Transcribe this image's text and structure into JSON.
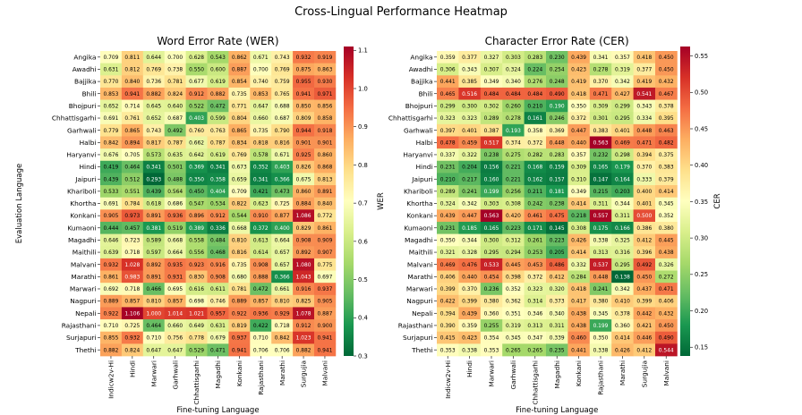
{
  "figure": {
    "title": "Cross-Lingual Performance Heatmap"
  },
  "chart_data": [
    {
      "type": "heatmap",
      "title": "Word Error Rate (WER)",
      "xlabel": "Fine-tuning Language",
      "ylabel": "Evaluation Language",
      "colorbar_label": "WER",
      "colormap": "RdYlGn_r",
      "vmin": 0.3,
      "vmax": 1.11,
      "colorbar_ticks": [
        "0.3",
        "0.4",
        "0.5",
        "0.6",
        "0.7",
        "0.8",
        "0.9",
        "1.0",
        "1.1"
      ],
      "columns": [
        "Indicw2v-Hi",
        "Hindi",
        "Marwari",
        "Garhwali",
        "Chhattisgarhi",
        "Magadhi",
        "Konkani",
        "Rajasthani",
        "Marathi",
        "Surgujia",
        "Malvani"
      ],
      "rows": [
        "Angika",
        "Awadhi",
        "Bajjika",
        "Bhili",
        "Bhojpuri",
        "Chhattisgarhi",
        "Garhwali",
        "Halbi",
        "Haryanvi",
        "Hindi",
        "Jaipuri",
        "Khariboli",
        "Khortha",
        "Konkani",
        "Kumaoni",
        "Magadhi",
        "Maithili",
        "Malvani",
        "Marathi",
        "Marwari",
        "Nagpuri",
        "Nepali",
        "Rajasthani",
        "Surjapuri",
        "Thethi"
      ],
      "values": [
        [
          "0.709",
          "0.811",
          "0.644",
          "0.700",
          "0.628",
          "0.543",
          "0.862",
          "0.671",
          "0.743",
          "0.932",
          "0.919"
        ],
        [
          "0.631",
          "0.812",
          "0.769",
          "0.738",
          "0.550",
          "0.600",
          "0.887",
          "0.700",
          "0.769",
          "0.875",
          "0.863"
        ],
        [
          "0.770",
          "0.840",
          "0.736",
          "0.781",
          "0.677",
          "0.619",
          "0.854",
          "0.740",
          "0.759",
          "0.955",
          "0.930"
        ],
        [
          "0.853",
          "0.941",
          "0.882",
          "0.824",
          "0.912",
          "0.882",
          "0.735",
          "0.853",
          "0.765",
          "0.941",
          "0.971"
        ],
        [
          "0.652",
          "0.714",
          "0.645",
          "0.640",
          "0.522",
          "0.472",
          "0.771",
          "0.647",
          "0.688",
          "0.850",
          "0.856"
        ],
        [
          "0.691",
          "0.761",
          "0.652",
          "0.687",
          "0.403",
          "0.599",
          "0.804",
          "0.660",
          "0.687",
          "0.809",
          "0.858"
        ],
        [
          "0.779",
          "0.865",
          "0.743",
          "0.492",
          "0.760",
          "0.763",
          "0.865",
          "0.735",
          "0.790",
          "0.944",
          "0.918"
        ],
        [
          "0.842",
          "0.894",
          "0.817",
          "0.787",
          "0.662",
          "0.787",
          "0.834",
          "0.818",
          "0.816",
          "0.901",
          "0.901"
        ],
        [
          "0.676",
          "0.705",
          "0.573",
          "0.635",
          "0.642",
          "0.619",
          "0.769",
          "0.578",
          "0.671",
          "0.925",
          "0.860"
        ],
        [
          "0.419",
          "0.464",
          "0.341",
          "0.501",
          "0.369",
          "0.341",
          "0.673",
          "0.352",
          "0.403",
          "0.826",
          "0.868"
        ],
        [
          "0.439",
          "0.512",
          "0.293",
          "0.488",
          "0.350",
          "0.358",
          "0.659",
          "0.341",
          "0.366",
          "0.675",
          "0.813"
        ],
        [
          "0.533",
          "0.551",
          "0.439",
          "0.564",
          "0.450",
          "0.404",
          "0.709",
          "0.421",
          "0.473",
          "0.860",
          "0.891"
        ],
        [
          "0.691",
          "0.784",
          "0.618",
          "0.686",
          "0.547",
          "0.534",
          "0.822",
          "0.623",
          "0.725",
          "0.884",
          "0.840"
        ],
        [
          "0.905",
          "0.973",
          "0.891",
          "0.936",
          "0.896",
          "0.912",
          "0.544",
          "0.910",
          "0.877",
          "1.086",
          "0.772"
        ],
        [
          "0.444",
          "0.457",
          "0.381",
          "0.519",
          "0.389",
          "0.336",
          "0.668",
          "0.372",
          "0.400",
          "0.829",
          "0.861"
        ],
        [
          "0.646",
          "0.723",
          "0.589",
          "0.668",
          "0.558",
          "0.484",
          "0.810",
          "0.613",
          "0.664",
          "0.908",
          "0.909"
        ],
        [
          "0.639",
          "0.718",
          "0.597",
          "0.664",
          "0.556",
          "0.468",
          "0.816",
          "0.614",
          "0.657",
          "0.892",
          "0.907"
        ],
        [
          "0.932",
          "1.028",
          "0.892",
          "0.935",
          "0.923",
          "0.916",
          "0.735",
          "0.908",
          "0.657",
          "1.080",
          "0.775"
        ],
        [
          "0.861",
          "0.983",
          "0.891",
          "0.931",
          "0.830",
          "0.908",
          "0.680",
          "0.888",
          "0.366",
          "1.043",
          "0.697"
        ],
        [
          "0.692",
          "0.718",
          "0.466",
          "0.695",
          "0.616",
          "0.611",
          "0.781",
          "0.472",
          "0.661",
          "0.916",
          "0.937"
        ],
        [
          "0.889",
          "0.857",
          "0.810",
          "0.857",
          "0.698",
          "0.746",
          "0.889",
          "0.857",
          "0.810",
          "0.825",
          "0.905"
        ],
        [
          "0.922",
          "1.106",
          "1.000",
          "1.014",
          "1.021",
          "0.957",
          "0.922",
          "0.936",
          "0.929",
          "1.078",
          "0.887"
        ],
        [
          "0.710",
          "0.725",
          "0.464",
          "0.660",
          "0.649",
          "0.631",
          "0.819",
          "0.422",
          "0.718",
          "0.912",
          "0.900"
        ],
        [
          "0.855",
          "0.932",
          "0.710",
          "0.756",
          "0.778",
          "0.679",
          "0.937",
          "0.710",
          "0.842",
          "1.023",
          "0.941"
        ],
        [
          "0.882",
          "0.824",
          "0.647",
          "0.647",
          "0.529",
          "0.471",
          "0.941",
          "0.706",
          "0.706",
          "0.882",
          "0.941"
        ]
      ]
    },
    {
      "type": "heatmap",
      "title": "Character Error Rate (CER)",
      "xlabel": "Fine-tuning Language",
      "ylabel": "",
      "colorbar_label": "CER",
      "colormap": "RdYlGn_r",
      "vmin": 0.138,
      "vmax": 0.563,
      "colorbar_ticks": [
        "0.15",
        "0.20",
        "0.25",
        "0.30",
        "0.35",
        "0.40",
        "0.45",
        "0.50",
        "0.55"
      ],
      "columns": [
        "Indicw2v-Hi",
        "Hindi",
        "Marwari",
        "Garhwali",
        "Chhattisgarhi",
        "Magadhi",
        "Konkani",
        "Rajasthani",
        "Marathi",
        "Surgujia",
        "Malvani"
      ],
      "rows": [
        "Angika",
        "Awadhi",
        "Bajjika",
        "Bhili",
        "Bhojpuri",
        "Chhattisgarhi",
        "Garhwali",
        "Halbi",
        "Haryanvi",
        "Hindi",
        "Jaipuri",
        "Khariboli",
        "Khortha",
        "Konkani",
        "Kumaoni",
        "Magadhi",
        "Maithili",
        "Malvani",
        "Marathi",
        "Marwari",
        "Nagpuri",
        "Nepali",
        "Rajasthani",
        "Surjapuri",
        "Thethi"
      ],
      "values": [
        [
          "0.359",
          "0.377",
          "0.327",
          "0.303",
          "0.283",
          "0.230",
          "0.439",
          "0.341",
          "0.357",
          "0.418",
          "0.450"
        ],
        [
          "0.306",
          "0.343",
          "0.307",
          "0.324",
          "0.224",
          "0.254",
          "0.423",
          "0.278",
          "0.319",
          "0.377",
          "0.450"
        ],
        [
          "0.441",
          "0.385",
          "0.349",
          "0.340",
          "0.276",
          "0.248",
          "0.419",
          "0.370",
          "0.342",
          "0.419",
          "0.432"
        ],
        [
          "0.465",
          "0.516",
          "0.484",
          "0.484",
          "0.484",
          "0.490",
          "0.418",
          "0.471",
          "0.427",
          "0.541",
          "0.467"
        ],
        [
          "0.299",
          "0.300",
          "0.302",
          "0.260",
          "0.210",
          "0.190",
          "0.350",
          "0.309",
          "0.299",
          "0.343",
          "0.378"
        ],
        [
          "0.323",
          "0.323",
          "0.289",
          "0.278",
          "0.161",
          "0.246",
          "0.372",
          "0.301",
          "0.295",
          "0.334",
          "0.395"
        ],
        [
          "0.397",
          "0.401",
          "0.387",
          "0.193",
          "0.358",
          "0.369",
          "0.447",
          "0.383",
          "0.401",
          "0.448",
          "0.463"
        ],
        [
          "0.478",
          "0.459",
          "0.517",
          "0.374",
          "0.372",
          "0.448",
          "0.440",
          "0.563",
          "0.469",
          "0.471",
          "0.482"
        ],
        [
          "0.337",
          "0.322",
          "0.238",
          "0.275",
          "0.282",
          "0.283",
          "0.357",
          "0.232",
          "0.298",
          "0.394",
          "0.375"
        ],
        [
          "0.231",
          "0.204",
          "0.156",
          "0.221",
          "0.168",
          "0.159",
          "0.309",
          "0.165",
          "0.179",
          "0.370",
          "0.383"
        ],
        [
          "0.210",
          "0.217",
          "0.160",
          "0.221",
          "0.162",
          "0.157",
          "0.310",
          "0.147",
          "0.164",
          "0.333",
          "0.379"
        ],
        [
          "0.289",
          "0.241",
          "0.199",
          "0.256",
          "0.211",
          "0.181",
          "0.349",
          "0.215",
          "0.203",
          "0.400",
          "0.414"
        ],
        [
          "0.324",
          "0.342",
          "0.303",
          "0.308",
          "0.242",
          "0.238",
          "0.414",
          "0.311",
          "0.344",
          "0.401",
          "0.345"
        ],
        [
          "0.439",
          "0.447",
          "0.563",
          "0.420",
          "0.461",
          "0.475",
          "0.218",
          "0.557",
          "0.311",
          "0.500",
          "0.352"
        ],
        [
          "0.231",
          "0.185",
          "0.165",
          "0.223",
          "0.171",
          "0.145",
          "0.308",
          "0.175",
          "0.166",
          "0.386",
          "0.380"
        ],
        [
          "0.350",
          "0.344",
          "0.300",
          "0.312",
          "0.261",
          "0.223",
          "0.426",
          "0.338",
          "0.325",
          "0.412",
          "0.445"
        ],
        [
          "0.321",
          "0.328",
          "0.295",
          "0.294",
          "0.253",
          "0.205",
          "0.414",
          "0.313",
          "0.316",
          "0.396",
          "0.438"
        ],
        [
          "0.469",
          "0.476",
          "0.533",
          "0.445",
          "0.453",
          "0.486",
          "0.332",
          "0.537",
          "0.295",
          "0.492",
          "0.326"
        ],
        [
          "0.406",
          "0.440",
          "0.454",
          "0.398",
          "0.372",
          "0.412",
          "0.284",
          "0.448",
          "0.138",
          "0.450",
          "0.272"
        ],
        [
          "0.399",
          "0.370",
          "0.236",
          "0.352",
          "0.323",
          "0.320",
          "0.418",
          "0.241",
          "0.342",
          "0.437",
          "0.471"
        ],
        [
          "0.422",
          "0.399",
          "0.380",
          "0.362",
          "0.314",
          "0.373",
          "0.417",
          "0.380",
          "0.410",
          "0.399",
          "0.406"
        ],
        [
          "0.394",
          "0.439",
          "0.360",
          "0.351",
          "0.346",
          "0.340",
          "0.438",
          "0.345",
          "0.378",
          "0.442",
          "0.432"
        ],
        [
          "0.390",
          "0.359",
          "0.255",
          "0.319",
          "0.313",
          "0.311",
          "0.438",
          "0.199",
          "0.360",
          "0.421",
          "0.450"
        ],
        [
          "0.415",
          "0.423",
          "0.354",
          "0.345",
          "0.347",
          "0.339",
          "0.460",
          "0.350",
          "0.414",
          "0.446",
          "0.490"
        ],
        [
          "0.353",
          "0.338",
          "0.353",
          "0.265",
          "0.265",
          "0.235",
          "0.441",
          "0.338",
          "0.426",
          "0.412",
          "0.544"
        ]
      ]
    }
  ]
}
